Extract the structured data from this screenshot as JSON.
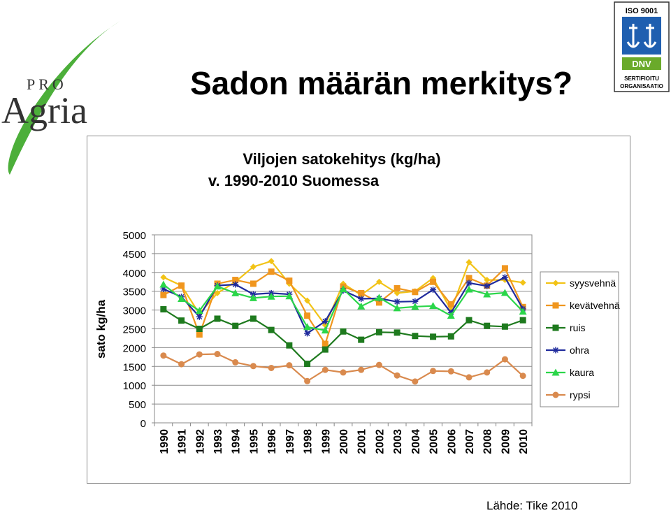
{
  "slide": {
    "title": "Sadon määrän merkitys?",
    "source": "Lähde: Tike 2010"
  },
  "logo": {
    "brand_top": "PRO",
    "brand_main": "Agria",
    "leaf_color": "#4caf3a"
  },
  "iso_badge": {
    "top_label": "ISO 9001",
    "dnv_label": "DNV",
    "line1": "SERTIFIOITU",
    "line2": "ORGANISAATIO",
    "badge_color": "#1f5fb0",
    "dnv_color": "#6aaa2a"
  },
  "chart_data": {
    "type": "line",
    "title_lines": [
      "Viljojen satokehitys (kg/ha)",
      "v. 1990-2010 Suomessa"
    ],
    "xlabel": "",
    "ylabel": "sato kg/ha",
    "ylim": [
      0,
      5000
    ],
    "yticks": [
      0,
      500,
      1000,
      1500,
      2000,
      2500,
      3000,
      3500,
      4000,
      4500,
      5000
    ],
    "grid": true,
    "legend_position": "right",
    "x": [
      "1990",
      "1991",
      "1992",
      "1993",
      "1994",
      "1995",
      "1996",
      "1997",
      "1998",
      "1999",
      "2000",
      "2001",
      "2002",
      "2003",
      "2004",
      "2005",
      "2006",
      "2007",
      "2008",
      "2009",
      "2010"
    ],
    "series": [
      {
        "name": "syysvehnä",
        "color": "#f2c316",
        "marker": "diamond",
        "values": [
          3870,
          3650,
          2900,
          3450,
          3750,
          4150,
          4300,
          3700,
          3250,
          2600,
          3700,
          3400,
          3750,
          3450,
          3500,
          3850,
          3000,
          4270,
          3800,
          3800,
          3730
        ]
      },
      {
        "name": "kevätvehnä",
        "color": "#f0961e",
        "marker": "square",
        "values": [
          3400,
          3650,
          2350,
          3700,
          3800,
          3700,
          4020,
          3780,
          2850,
          2100,
          3620,
          3450,
          3200,
          3580,
          3480,
          3750,
          3150,
          3850,
          3650,
          4110,
          3080
        ]
      },
      {
        "name": "ruis",
        "color": "#1e7a1e",
        "marker": "square",
        "values": [
          3020,
          2720,
          2500,
          2770,
          2580,
          2770,
          2470,
          2060,
          1570,
          1950,
          2430,
          2210,
          2410,
          2400,
          2310,
          2290,
          2300,
          2730,
          2580,
          2560,
          2730
        ]
      },
      {
        "name": "ohra",
        "color": "#1f2a9c",
        "marker": "star",
        "values": [
          3560,
          3350,
          2820,
          3650,
          3680,
          3420,
          3450,
          3420,
          2380,
          2700,
          3520,
          3300,
          3310,
          3220,
          3230,
          3540,
          2930,
          3720,
          3640,
          3870,
          3030
        ]
      },
      {
        "name": "kaura",
        "color": "#2bd64a",
        "marker": "triangle",
        "values": [
          3680,
          3300,
          2980,
          3630,
          3450,
          3320,
          3360,
          3370,
          2550,
          2460,
          3560,
          3100,
          3330,
          3050,
          3090,
          3110,
          2850,
          3550,
          3420,
          3460,
          2960
        ]
      },
      {
        "name": "rypsi",
        "color": "#d98a4e",
        "marker": "circle",
        "values": [
          1790,
          1560,
          1820,
          1830,
          1610,
          1510,
          1460,
          1530,
          1110,
          1410,
          1340,
          1410,
          1540,
          1260,
          1100,
          1380,
          1370,
          1210,
          1340,
          1690,
          1250
        ]
      }
    ]
  }
}
